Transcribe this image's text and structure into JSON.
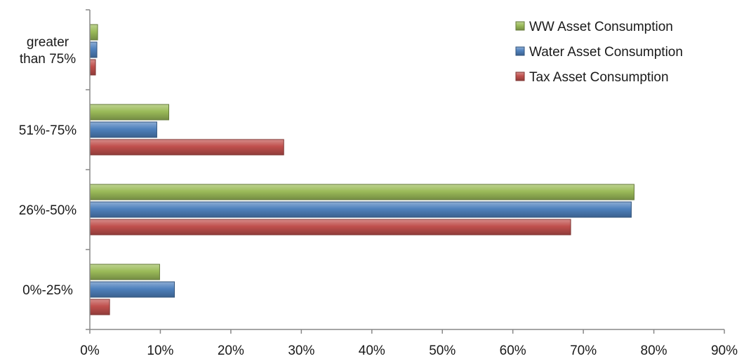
{
  "chart_data": {
    "type": "bar",
    "orientation": "horizontal",
    "categories": [
      "0%-25%",
      "26%-50%",
      "51%-75%",
      "greater than 75%"
    ],
    "category_label_lines": [
      [
        "0%-25%"
      ],
      [
        "26%-50%"
      ],
      [
        "51%-75%"
      ],
      [
        "greater",
        "than 75%"
      ]
    ],
    "series": [
      {
        "name": "Tax Asset Consumption",
        "color": "#c0504d",
        "values": [
          2.8,
          68.2,
          27.5,
          0.8
        ]
      },
      {
        "name": "Water Asset Consumption",
        "color": "#4f81bd",
        "values": [
          12.0,
          76.8,
          9.5,
          1.0
        ]
      },
      {
        "name": "WW Asset Consumption",
        "color": "#9bbb59",
        "values": [
          9.9,
          77.2,
          11.2,
          1.1
        ]
      }
    ],
    "legend_order": [
      "WW Asset Consumption",
      "Water Asset Consumption",
      "Tax Asset Consumption"
    ],
    "legend_position": "top-right",
    "xlim": [
      0,
      90
    ],
    "xticks": [
      0,
      10,
      20,
      30,
      40,
      50,
      60,
      70,
      80,
      90
    ],
    "xtick_labels": [
      "0%",
      "10%",
      "20%",
      "30%",
      "40%",
      "50%",
      "60%",
      "70%",
      "80%",
      "90%"
    ],
    "grid": false,
    "title": "",
    "xlabel": "",
    "ylabel": ""
  }
}
